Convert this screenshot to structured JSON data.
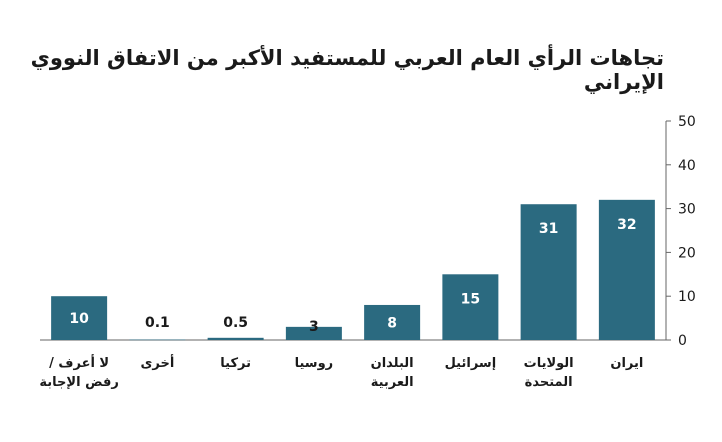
{
  "chart_data": {
    "type": "bar",
    "title": "تجاهات الرأي العام العربي للمستفيد الأكبر من الاتفاق النووي الإيراني",
    "categories": [
      "لا أعرف / رفض الإجابة",
      "أخرى",
      "تركيا",
      "روسيا",
      "البلدان العربية",
      "إسرائيل",
      "الولايات المتحدة",
      "ايران"
    ],
    "category_lines": [
      [
        "لا أعرف /",
        "رفض الإجابة"
      ],
      [
        "أخرى"
      ],
      [
        "تركيا"
      ],
      [
        "روسيا"
      ],
      [
        "البلدان",
        "العربية"
      ],
      [
        "إسرائيل"
      ],
      [
        "الولايات",
        "المتحدة"
      ],
      [
        "ايران"
      ]
    ],
    "values": [
      10,
      0.1,
      0.5,
      3,
      8,
      15,
      31,
      32
    ],
    "data_labels": [
      "10",
      "0.1",
      "0.5",
      "3",
      "8",
      "15",
      "31",
      "32"
    ],
    "ylim": [
      0,
      50
    ],
    "yticks": [
      0,
      10,
      20,
      30,
      40,
      50
    ],
    "y_axis_position": "right",
    "grid": false,
    "legend": "none",
    "bar_color": "#2b6a80",
    "label_color_inside": "#ffffff",
    "label_color_outside": "#1a1a1a"
  }
}
